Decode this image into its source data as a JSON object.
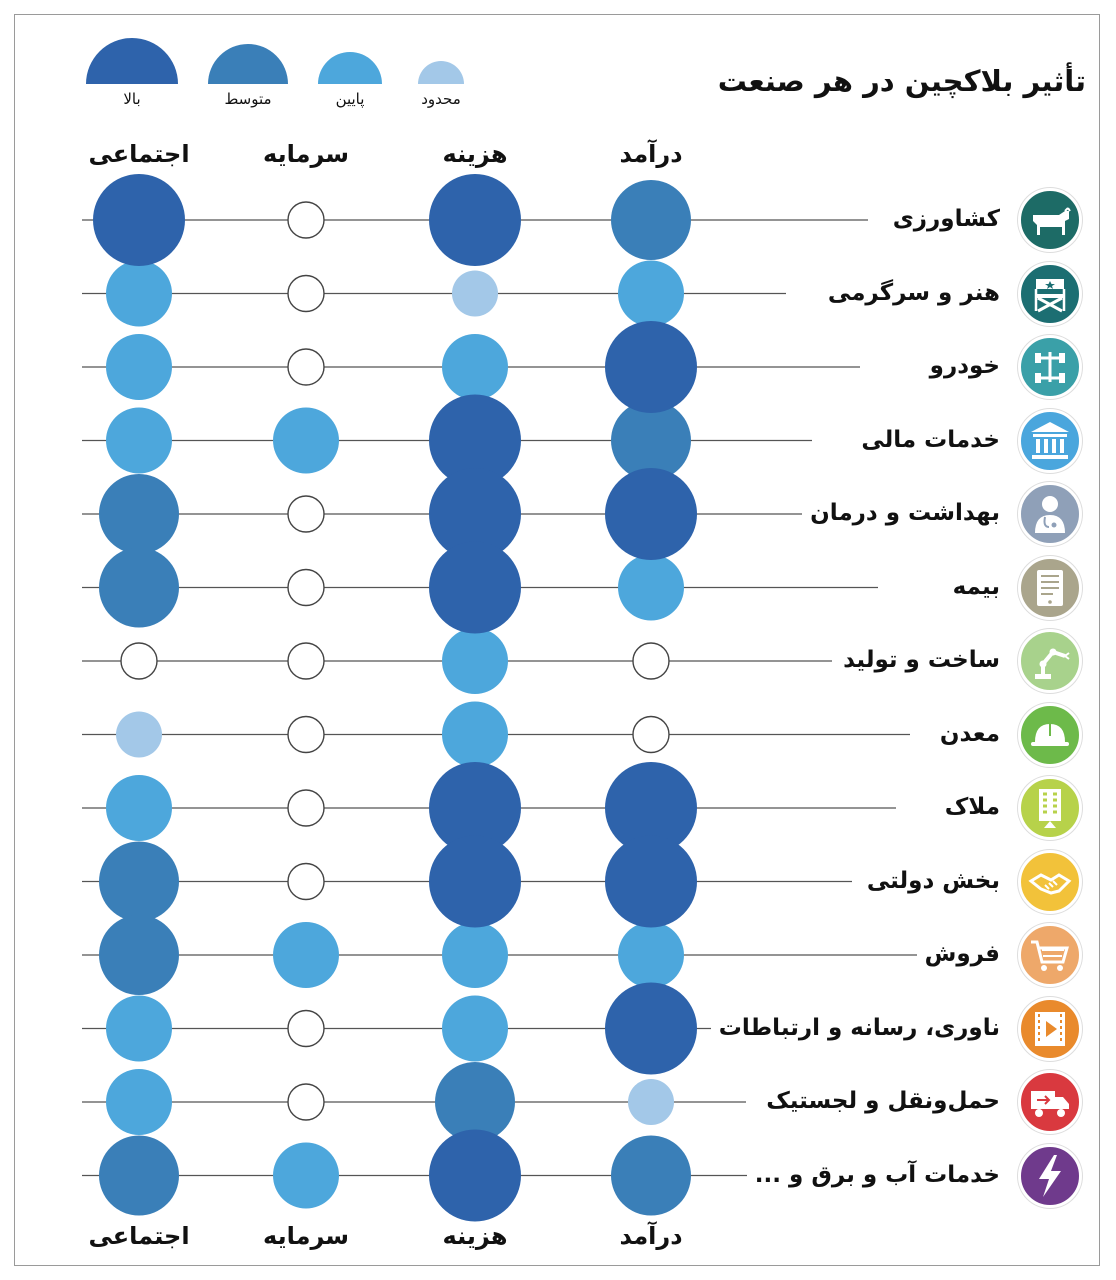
{
  "title": "تأثیر بلاکچین در هر صنعت",
  "legend": [
    {
      "label": "بالا",
      "level": "high",
      "color": "#2e63ab"
    },
    {
      "label": "متوسط",
      "level": "medium",
      "color": "#3a7fb8"
    },
    {
      "label": "پایین",
      "level": "low",
      "color": "#4da7dc"
    },
    {
      "label": "محدود",
      "level": "limited",
      "color": "#a3c8e8"
    }
  ],
  "columns": [
    "اجتماعی",
    "سرمایه",
    "هزینه",
    "درآمد"
  ],
  "chart_data": {
    "type": "table",
    "title": "تأثیر بلاکچین در هر صنعت",
    "levels": [
      "none",
      "limited",
      "low",
      "medium",
      "high"
    ],
    "columns": [
      "اجتماعی",
      "سرمایه",
      "هزینه",
      "درآمد"
    ],
    "rows": [
      {
        "label": "کشاورزی",
        "icon": "cow-icon",
        "icon_color": "#1d6b66",
        "values": [
          "high",
          "none",
          "high",
          "medium"
        ]
      },
      {
        "label": "هنر و سرگرمی",
        "icon": "director-chair-icon",
        "icon_color": "#1c6e72",
        "values": [
          "low",
          "none",
          "limited",
          "low"
        ]
      },
      {
        "label": "خودرو",
        "icon": "car-chassis-icon",
        "icon_color": "#3aa0a8",
        "values": [
          "low",
          "none",
          "low",
          "high"
        ]
      },
      {
        "label": "خدمات مالی",
        "icon": "bank-icon",
        "icon_color": "#4aa6dd",
        "values": [
          "low",
          "low",
          "high",
          "medium"
        ]
      },
      {
        "label": "بهداشت و درمان",
        "icon": "doctor-icon",
        "icon_color": "#8fa0b8",
        "values": [
          "medium",
          "none",
          "high",
          "high"
        ]
      },
      {
        "label": "بیمه",
        "icon": "document-tablet-icon",
        "icon_color": "#aaa58c",
        "values": [
          "medium",
          "none",
          "high",
          "low"
        ]
      },
      {
        "label": "ساخت و تولید",
        "icon": "robot-arm-icon",
        "icon_color": "#a8d28c",
        "values": [
          "none",
          "none",
          "low",
          "none"
        ]
      },
      {
        "label": "معدن",
        "icon": "hard-hat-icon",
        "icon_color": "#6dba4a",
        "values": [
          "limited",
          "none",
          "low",
          "none"
        ]
      },
      {
        "label": "ملاک",
        "icon": "building-icon",
        "icon_color": "#b7d24a",
        "values": [
          "low",
          "none",
          "high",
          "high"
        ]
      },
      {
        "label": "بخش دولتی",
        "icon": "handshake-icon",
        "icon_color": "#f2c23a",
        "values": [
          "medium",
          "none",
          "high",
          "high"
        ]
      },
      {
        "label": "فروش",
        "icon": "shopping-cart-icon",
        "icon_color": "#eea86a",
        "values": [
          "medium",
          "low",
          "low",
          "low"
        ]
      },
      {
        "label": "ناوری، رسانه و ارتباطات",
        "icon": "video-film-icon",
        "icon_color": "#e98a2c",
        "values": [
          "low",
          "none",
          "low",
          "high"
        ]
      },
      {
        "label": "حمل‌ونقل و لجستیک",
        "icon": "truck-icon",
        "icon_color": "#d9393f",
        "values": [
          "low",
          "none",
          "medium",
          "limited"
        ]
      },
      {
        "label": "خدمات آب و برق و ...",
        "icon": "lightning-icon",
        "icon_color": "#6f3a8c",
        "values": [
          "medium",
          "low",
          "high",
          "medium"
        ]
      }
    ]
  }
}
